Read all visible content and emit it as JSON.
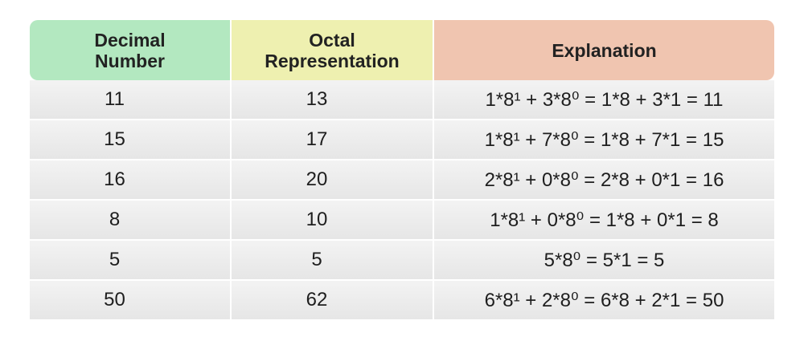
{
  "table": {
    "headers": [
      "Decimal\nNumber",
      "Octal\nRepresentation",
      "Explanation"
    ],
    "header_colors": [
      "#b3e8c0",
      "#eef0b0",
      "#f0c5b0"
    ],
    "rows": [
      {
        "decimal": "11",
        "octal": "13",
        "explanation": "1*8¹ + 3*8⁰ = 1*8 + 3*1 = 11"
      },
      {
        "decimal": "15",
        "octal": "17",
        "explanation": "1*8¹ + 7*8⁰ = 1*8 + 7*1 = 15"
      },
      {
        "decimal": "16",
        "octal": "20",
        "explanation": "2*8¹ + 0*8⁰ = 2*8 + 0*1 = 16"
      },
      {
        "decimal": "8",
        "octal": "10",
        "explanation": "1*8¹ + 0*8⁰ = 1*8 + 0*1 = 8"
      },
      {
        "decimal": "5",
        "octal": "5",
        "explanation": "5*8⁰ = 5*1 = 5"
      },
      {
        "decimal": "50",
        "octal": "62",
        "explanation": "6*8¹ + 2*8⁰ = 6*8 + 2*1 = 50"
      }
    ]
  }
}
